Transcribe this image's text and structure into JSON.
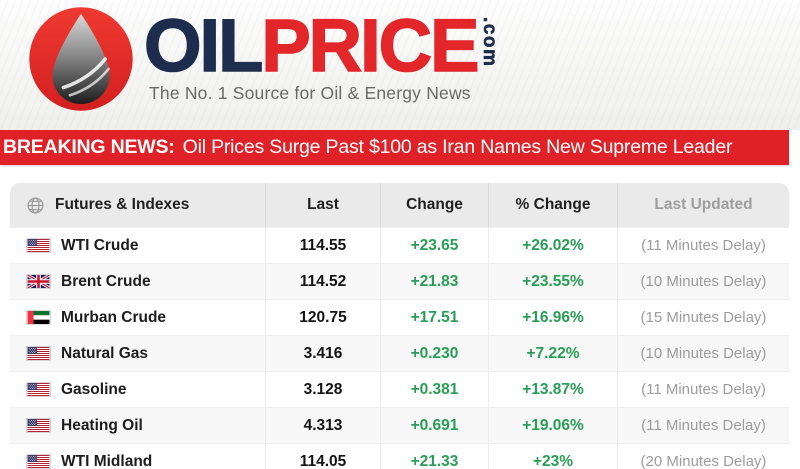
{
  "brand": {
    "wordmark_oil": "OIL",
    "wordmark_price": "PRICE",
    "wordmark_tld": ".com",
    "tagline": "The No. 1 Source for Oil & Energy News"
  },
  "breaking": {
    "label": "BREAKING NEWS:",
    "headline": "Oil Prices Surge Past $100 as Iran Names New Supreme Leader"
  },
  "table": {
    "columns": [
      "Futures & Indexes",
      "Last",
      "Change",
      "% Change",
      "Last Updated"
    ],
    "rows": [
      {
        "flag": "us-flag-icon",
        "name": "WTI Crude",
        "last": "114.55",
        "change": "+23.65",
        "pct": "+26.02%",
        "updated": "(11 Minutes Delay)"
      },
      {
        "flag": "uk-flag-icon",
        "name": "Brent Crude",
        "last": "114.52",
        "change": "+21.83",
        "pct": "+23.55%",
        "updated": "(10 Minutes Delay)"
      },
      {
        "flag": "ae-flag-icon",
        "name": "Murban Crude",
        "last": "120.75",
        "change": "+17.51",
        "pct": "+16.96%",
        "updated": "(15 Minutes Delay)"
      },
      {
        "flag": "us-flag-icon",
        "name": "Natural Gas",
        "last": "3.416",
        "change": "+0.230",
        "pct": "+7.22%",
        "updated": "(10 Minutes Delay)"
      },
      {
        "flag": "us-flag-icon",
        "name": "Gasoline",
        "last": "3.128",
        "change": "+0.381",
        "pct": "+13.87%",
        "updated": "(11 Minutes Delay)"
      },
      {
        "flag": "us-flag-icon",
        "name": "Heating Oil",
        "last": "4.313",
        "change": "+0.691",
        "pct": "+19.06%",
        "updated": "(11 Minutes Delay)"
      },
      {
        "flag": "us-flag-icon",
        "name": "WTI Midland",
        "last": "114.05",
        "change": "+21.33",
        "pct": "+23%",
        "updated": "(20 Minutes Delay)"
      }
    ]
  },
  "colors": {
    "banner_red": "#e02127",
    "brand_red": "#e32629",
    "navy": "#1e2c4e",
    "up_green": "#289e55",
    "header_bg": "#eaeaea"
  }
}
